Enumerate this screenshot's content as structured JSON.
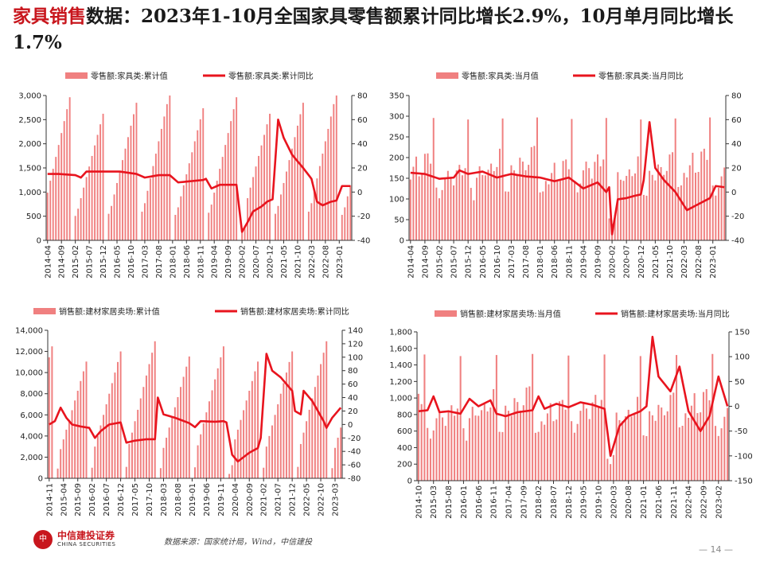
{
  "title": {
    "keyword": "家具销售",
    "text": "数据：2023年1-10月全国家具零售额累计同比增长2.9%，10月单月同比增长1.7%"
  },
  "colors": {
    "bar": "#f08080",
    "line": "#e8141e",
    "axis": "#333333",
    "accent": "#c8161d"
  },
  "footer": {
    "logo_seal": "中",
    "logo_cn": "中信建投证券",
    "logo_en": "CHINA SECURITIES",
    "source": "数据来源：国家统计局，Wind，中信建投",
    "page": "— 14 —"
  },
  "chart_data": [
    {
      "type": "bar+line",
      "legend": [
        "零售额:家具类:累计值",
        "零售额:家具类:累计同比"
      ],
      "xticks": [
        "2014-04",
        "2014-09",
        "2015-02",
        "2015-07",
        "2015-12",
        "2016-05",
        "2016-10",
        "2017-03",
        "2017-08",
        "2018-01",
        "2018-06",
        "2018-11",
        "2019-04",
        "2019-09",
        "2020-02",
        "2020-07",
        "2020-12",
        "2021-05",
        "2021-10",
        "2022-03",
        "2022-08",
        "2023-01"
      ],
      "xstart": "2014-04",
      "xend": "2023-05",
      "left_ylim": [
        0,
        3000
      ],
      "left_ticks": [
        "0",
        "500",
        "1,000",
        "1,500",
        "2,000",
        "2,500",
        "3,000"
      ],
      "right_ylim": [
        -40,
        80
      ],
      "right_ticks": [
        "-40",
        "-20",
        "0",
        "20",
        "40",
        "60",
        "80"
      ],
      "bar_type": "cumulative",
      "bar_peak": 2850,
      "bar_jan": 550,
      "line": [
        [
          "2014-04",
          15
        ],
        [
          "2014-08",
          15
        ],
        [
          "2015-02",
          14
        ],
        [
          "2015-04",
          12
        ],
        [
          "2015-06",
          17
        ],
        [
          "2016-06",
          17
        ],
        [
          "2016-12",
          15
        ],
        [
          "2017-03",
          12
        ],
        [
          "2017-08",
          14
        ],
        [
          "2017-12",
          14
        ],
        [
          "2018-03",
          8
        ],
        [
          "2018-12",
          10
        ],
        [
          "2019-01",
          11
        ],
        [
          "2019-03",
          3
        ],
        [
          "2019-06",
          6
        ],
        [
          "2019-09",
          6
        ],
        [
          "2019-12",
          6
        ],
        [
          "2020-02",
          -33
        ],
        [
          "2020-04",
          -25
        ],
        [
          "2020-06",
          -16
        ],
        [
          "2020-09",
          -12
        ],
        [
          "2020-11",
          -8
        ],
        [
          "2021-01",
          -6
        ],
        [
          "2021-03",
          60
        ],
        [
          "2021-05",
          45
        ],
        [
          "2021-08",
          31
        ],
        [
          "2021-12",
          20
        ],
        [
          "2022-03",
          11
        ],
        [
          "2022-05",
          -8
        ],
        [
          "2022-07",
          -11
        ],
        [
          "2022-10",
          -8
        ],
        [
          "2022-12",
          -7
        ],
        [
          "2023-02",
          5
        ],
        [
          "2023-05",
          5
        ]
      ]
    },
    {
      "type": "bar+line",
      "legend": [
        "零售额:家具类:当月值",
        "零售额:家具类:当月同比"
      ],
      "xticks": [
        "2014-04",
        "2014-09",
        "2015-02",
        "2015-07",
        "2015-12",
        "2016-05",
        "2016-10",
        "2017-03",
        "2017-08",
        "2018-01",
        "2018-06",
        "2018-11",
        "2019-04",
        "2019-09",
        "2020-02",
        "2020-07",
        "2020-12",
        "2021-05",
        "2021-10",
        "2022-03",
        "2022-08",
        "2023-01"
      ],
      "xstart": "2014-04",
      "xend": "2023-05",
      "left_ylim": [
        0,
        350
      ],
      "left_ticks": [
        "0",
        "50",
        "100",
        "150",
        "200",
        "250",
        "300",
        "350"
      ],
      "right_ylim": [
        -40,
        80
      ],
      "right_ticks": [
        "-40",
        "-20",
        "0",
        "20",
        "40",
        "60",
        "80"
      ],
      "bar_type": "monthly",
      "bar_peak": 310,
      "bar_base": 200,
      "line": [
        [
          "2014-04",
          16
        ],
        [
          "2014-09",
          15
        ],
        [
          "2015-02",
          11
        ],
        [
          "2015-07",
          12
        ],
        [
          "2015-09",
          18
        ],
        [
          "2015-12",
          15
        ],
        [
          "2016-05",
          17
        ],
        [
          "2016-10",
          12
        ],
        [
          "2017-03",
          15
        ],
        [
          "2017-08",
          13
        ],
        [
          "2018-01",
          12
        ],
        [
          "2018-06",
          9
        ],
        [
          "2018-11",
          12
        ],
        [
          "2019-04",
          3
        ],
        [
          "2019-09",
          8
        ],
        [
          "2019-12",
          0
        ],
        [
          "2020-01",
          4
        ],
        [
          "2020-02",
          -35
        ],
        [
          "2020-04",
          -6
        ],
        [
          "2020-07",
          -5
        ],
        [
          "2020-10",
          -3
        ],
        [
          "2020-12",
          -2
        ],
        [
          "2021-01",
          10
        ],
        [
          "2021-03",
          58
        ],
        [
          "2021-05",
          20
        ],
        [
          "2021-08",
          10
        ],
        [
          "2021-12",
          0
        ],
        [
          "2022-04",
          -15
        ],
        [
          "2022-08",
          -10
        ],
        [
          "2022-12",
          -5
        ],
        [
          "2023-02",
          5
        ],
        [
          "2023-05",
          4
        ]
      ]
    },
    {
      "type": "bar+line",
      "legend": [
        "销售额:建材家居卖场:累计值",
        "销售额:建材家居卖场:累计同比"
      ],
      "xticks": [
        "2014-11",
        "2015-04",
        "2015-09",
        "2016-02",
        "2016-07",
        "2016-12",
        "2017-05",
        "2017-10",
        "2018-03",
        "2018-08",
        "2019-01",
        "2019-06",
        "2019-11",
        "2020-04",
        "2020-09",
        "2021-02",
        "2021-07",
        "2021-12",
        "2022-05",
        "2022-10",
        "2023-03"
      ],
      "xstart": "2014-11",
      "xend": "2023-05",
      "left_ylim": [
        0,
        14000
      ],
      "left_ticks": [
        "0",
        "2,000",
        "4,000",
        "6,000",
        "8,000",
        "10,000",
        "12,000",
        "14,000"
      ],
      "right_ylim": [
        -80,
        140
      ],
      "right_ticks": [
        "-80",
        "-60",
        "-40",
        "-20",
        "0",
        "20",
        "40",
        "60",
        "80",
        "100",
        "120",
        "140"
      ],
      "bar_type": "cumulative",
      "bar_peak": 12000,
      "bar_jan": 1000,
      "line": [
        [
          "2014-11",
          0
        ],
        [
          "2015-01",
          5
        ],
        [
          "2015-03",
          25
        ],
        [
          "2015-05",
          10
        ],
        [
          "2015-07",
          0
        ],
        [
          "2015-10",
          -3
        ],
        [
          "2016-01",
          -5
        ],
        [
          "2016-03",
          -20
        ],
        [
          "2016-05",
          -10
        ],
        [
          "2016-08",
          0
        ],
        [
          "2016-12",
          3
        ],
        [
          "2017-02",
          -27
        ],
        [
          "2017-05",
          -24
        ],
        [
          "2017-09",
          -22
        ],
        [
          "2017-12",
          -22
        ],
        [
          "2018-01",
          40
        ],
        [
          "2018-03",
          15
        ],
        [
          "2018-07",
          10
        ],
        [
          "2018-12",
          2
        ],
        [
          "2019-02",
          -4
        ],
        [
          "2019-04",
          5
        ],
        [
          "2019-09",
          4
        ],
        [
          "2019-12",
          5
        ],
        [
          "2020-01",
          3
        ],
        [
          "2020-03",
          -45
        ],
        [
          "2020-05",
          -55
        ],
        [
          "2020-09",
          -42
        ],
        [
          "2020-12",
          -35
        ],
        [
          "2021-01",
          -20
        ],
        [
          "2021-03",
          105
        ],
        [
          "2021-05",
          80
        ],
        [
          "2021-08",
          70
        ],
        [
          "2021-12",
          50
        ],
        [
          "2022-01",
          20
        ],
        [
          "2022-03",
          15
        ],
        [
          "2022-04",
          50
        ],
        [
          "2022-07",
          35
        ],
        [
          "2022-11",
          5
        ],
        [
          "2022-12",
          -5
        ],
        [
          "2023-02",
          10
        ],
        [
          "2023-05",
          25
        ]
      ]
    },
    {
      "type": "bar+line",
      "legend": [
        "销售额:建材家居卖场:当月值",
        "销售额:建材家居卖场:当月同比"
      ],
      "xticks": [
        "2014-10",
        "2015-03",
        "2015-08",
        "2016-01",
        "2016-06",
        "2016-11",
        "2017-04",
        "2017-09",
        "2018-02",
        "2018-07",
        "2018-12",
        "2019-05",
        "2019-10",
        "2020-03",
        "2020-08",
        "2021-01",
        "2021-06",
        "2021-11",
        "2022-04",
        "2022-09",
        "2023-02"
      ],
      "xstart": "2014-10",
      "xend": "2023-05",
      "left_ylim": [
        0,
        1800
      ],
      "left_ticks": [
        "0",
        "200",
        "400",
        "600",
        "800",
        "1,000",
        "1,200",
        "1,400",
        "1,600",
        "1,800"
      ],
      "right_ylim": [
        -150,
        150
      ],
      "right_ticks": [
        "-150",
        "-100",
        "-50",
        "0",
        "50",
        "100",
        "150"
      ],
      "bar_type": "monthly",
      "bar_peak": 1600,
      "bar_base": 1000,
      "line": [
        [
          "2014-10",
          -10
        ],
        [
          "2015-01",
          -8
        ],
        [
          "2015-03",
          20
        ],
        [
          "2015-05",
          -12
        ],
        [
          "2015-08",
          -10
        ],
        [
          "2015-12",
          -15
        ],
        [
          "2016-03",
          15
        ],
        [
          "2016-06",
          0
        ],
        [
          "2016-10",
          12
        ],
        [
          "2016-12",
          -15
        ],
        [
          "2017-03",
          -20
        ],
        [
          "2017-07",
          -12
        ],
        [
          "2017-12",
          -8
        ],
        [
          "2018-02",
          20
        ],
        [
          "2018-04",
          -5
        ],
        [
          "2018-08",
          5
        ],
        [
          "2018-12",
          -2
        ],
        [
          "2019-04",
          8
        ],
        [
          "2019-08",
          3
        ],
        [
          "2019-12",
          -5
        ],
        [
          "2020-02",
          -100
        ],
        [
          "2020-05",
          -40
        ],
        [
          "2020-08",
          -20
        ],
        [
          "2020-12",
          -10
        ],
        [
          "2021-02",
          0
        ],
        [
          "2021-04",
          140
        ],
        [
          "2021-06",
          60
        ],
        [
          "2021-10",
          30
        ],
        [
          "2022-01",
          80
        ],
        [
          "2022-04",
          -10
        ],
        [
          "2022-08",
          -50
        ],
        [
          "2022-11",
          -20
        ],
        [
          "2023-02",
          60
        ],
        [
          "2023-05",
          0
        ]
      ]
    }
  ]
}
